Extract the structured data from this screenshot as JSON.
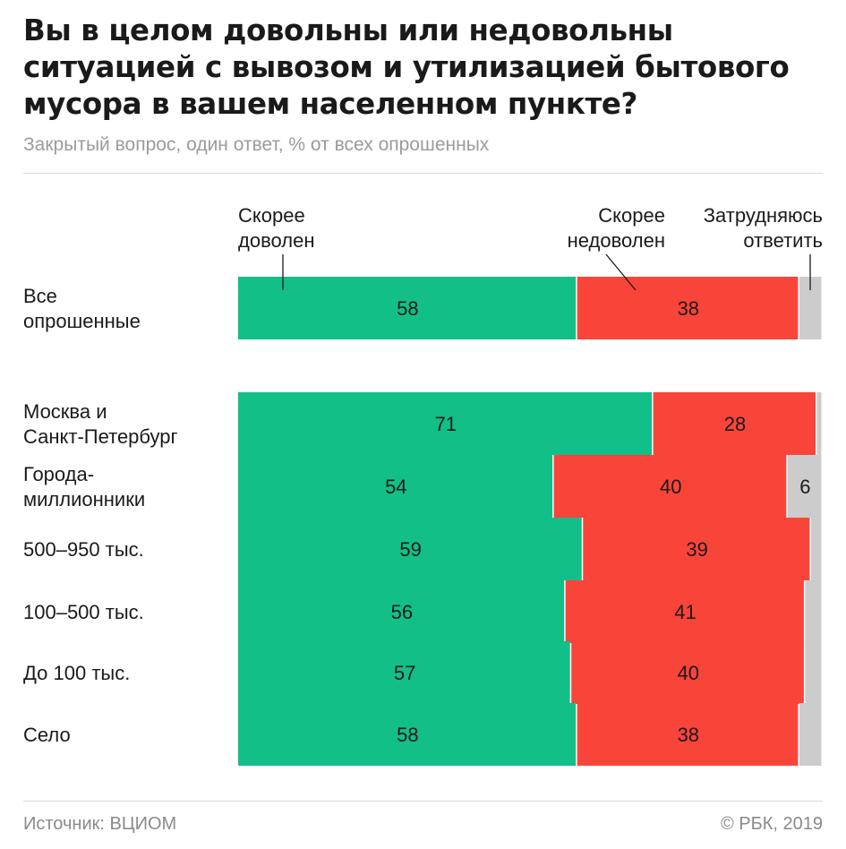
{
  "title": "Вы в целом довольны или недовольны ситуацией с вывозом и утилизацией бытового мусора в вашем населенном пункте?",
  "subtitle": "Закрытый вопрос, один ответ, % от всех опрошенных",
  "footer": {
    "source": "Источник: ВЦИОМ",
    "copyright": "© РБК, 2019"
  },
  "colors": {
    "satisfied": "#12bf88",
    "dissatisfied": "#f9443a",
    "undecided": "#cccccc"
  },
  "chart_data": {
    "type": "bar",
    "orientation": "horizontal",
    "stacked": true,
    "xlim": [
      0,
      100
    ],
    "categories": [
      [
        "Все",
        "опрошенные"
      ],
      [
        "Москва и",
        "Санкт-Петербург"
      ],
      [
        "Города-",
        "миллионники"
      ],
      [
        "500–950 тыс."
      ],
      [
        "100–500 тыс."
      ],
      [
        "До 100 тыс."
      ],
      [
        "Село"
      ]
    ],
    "series": [
      {
        "name": [
          "Скорее",
          "доволен"
        ],
        "values": [
          58,
          71,
          54,
          59,
          56,
          57,
          58
        ],
        "labels": [
          "58",
          "71",
          "54",
          "59",
          "56",
          "57",
          "58"
        ]
      },
      {
        "name": [
          "Скорее",
          "недоволен"
        ],
        "values": [
          38,
          28,
          40,
          39,
          41,
          40,
          38
        ],
        "labels": [
          "38",
          "28",
          "40",
          "39",
          "41",
          "40",
          "38"
        ]
      },
      {
        "name": [
          "Затрудняюсь",
          "ответить"
        ],
        "values": [
          4,
          1,
          6,
          2,
          3,
          3,
          4
        ],
        "labels": [
          "",
          "",
          "6",
          "",
          "",
          "",
          ""
        ]
      }
    ]
  }
}
